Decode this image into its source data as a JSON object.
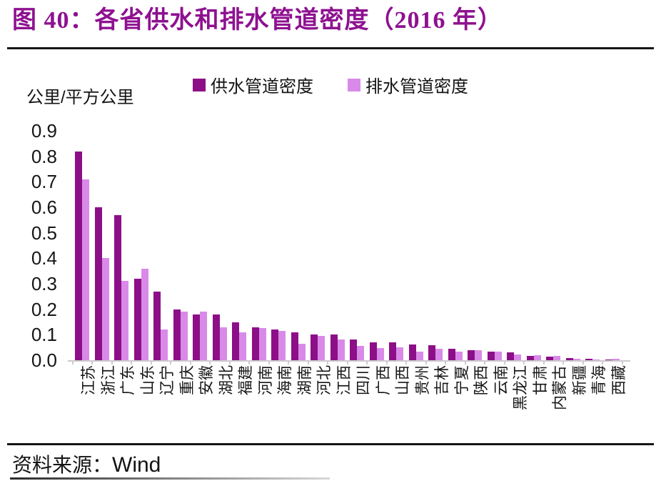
{
  "header": {
    "title": "图 40：各省供水和排水管道密度（2016 年）"
  },
  "theme": {
    "title_color": "#8e1190",
    "supply_bar_color": "#8c0f87",
    "drainage_bar_color": "#d98ae8",
    "axis_color": "#cccccc",
    "text_color": "#161616"
  },
  "legend": [
    {
      "label": "供水管道密度",
      "color": "#8c0f87"
    },
    {
      "label": "排水管道密度",
      "color": "#d98ae8"
    }
  ],
  "footer": {
    "source_label": "资料来源：",
    "source_value": "Wind"
  },
  "chart_data": {
    "type": "bar",
    "title": "各省供水和排水管道密度（2016 年）",
    "unit_label": "公里/平方公里",
    "xlabel": "",
    "ylabel": "公里/平方公里",
    "ylim": [
      0,
      0.9
    ],
    "yticks": [
      "0.9",
      "0.8",
      "0.7",
      "0.6",
      "0.5",
      "0.4",
      "0.3",
      "0.2",
      "0.1",
      "0.0"
    ],
    "grid": false,
    "legend_position": "top-center",
    "categories": [
      "江苏",
      "浙江",
      "广东",
      "山东",
      "辽宁",
      "重庆",
      "安徽",
      "湖北",
      "福建",
      "河南",
      "海南",
      "湖南",
      "河北",
      "江西",
      "四川",
      "广西",
      "山西",
      "贵州",
      "吉林",
      "宁夏",
      "陕西",
      "云南",
      "黑龙江",
      "甘肃",
      "内蒙古",
      "新疆",
      "青海",
      "西藏"
    ],
    "series": [
      {
        "key": "supply",
        "name": "供水管道密度",
        "color": "#8c0f87",
        "values": [
          0.82,
          0.6,
          0.57,
          0.32,
          0.27,
          0.2,
          0.18,
          0.18,
          0.15,
          0.13,
          0.12,
          0.11,
          0.1,
          0.1,
          0.08,
          0.07,
          0.07,
          0.063,
          0.06,
          0.046,
          0.04,
          0.035,
          0.03,
          0.016,
          0.013,
          0.008,
          0.005,
          0.004
        ]
      },
      {
        "key": "drainage",
        "name": "排水管道密度",
        "color": "#d98ae8",
        "values": [
          0.71,
          0.4,
          0.31,
          0.36,
          0.12,
          0.19,
          0.19,
          0.13,
          0.11,
          0.125,
          0.115,
          0.065,
          0.095,
          0.08,
          0.055,
          0.047,
          0.05,
          0.035,
          0.044,
          0.033,
          0.04,
          0.035,
          0.022,
          0.021,
          0.018,
          0.007,
          0.004,
          0.005
        ]
      }
    ]
  }
}
